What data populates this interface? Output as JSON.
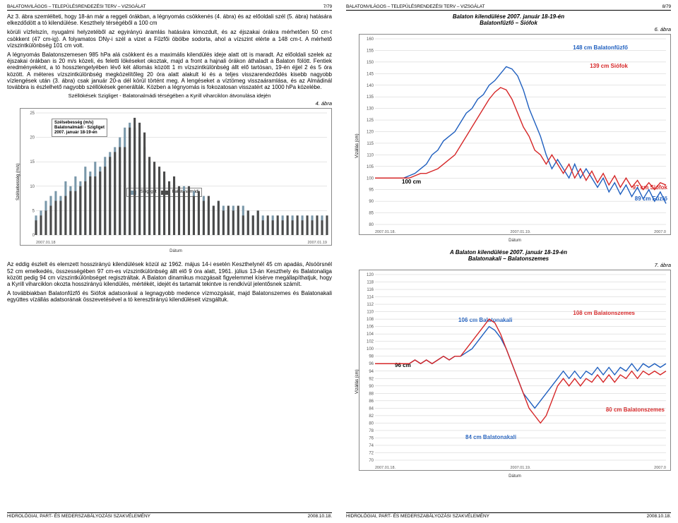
{
  "left": {
    "header_left": "BALATONVILÁGOS – TELEPÜLÉSRENDEZÉSI TERV – VIZSGÁLAT",
    "header_right": "7/79",
    "para1": "Az 3. ábra szemlélteti, hogy 18-án már a reggeli órákban, a légnyomás csökkenés (4. ábra) és az előoldali szél (5. ábra) hatására elkezdődött a tó kilendülése. Keszthely térségéből a 100 cm",
    "para2": "körüli vízfelszín, nyugalmi helyzetéből az egyirányú áramlás hatására kimozdult, és az éjszakai órákra mérhetően 50 cm-t csökkent (47 cm-ig). A folyamatos DNy-i szél a vizet a Fűzfői öbölbe sodorta, ahol a vízszint elérte a 148 cm-t. A mérhető vízszintkülönbség 101 cm volt.",
    "para3": "A légnyomás Balatonszemesen 985 hPa alá csökkent és a maximális kilendülés ideje alatt ott is maradt. Az előoldali szelek az éjszakai órákban is 20 m/s közeli, és feletti lökéseket okoztak, majd a front a hajnali órákon áthaladt a Balaton fölött. Fentiek eredményeként, a tó hossztengelyében lévő két állomás között 1 m vízszintkülönbség állt elő tartósan, 19-én éjjel 2 és 5 óra között. A méteres vízszintkülönbség megközelítőleg 20 óra alatt alakult ki és a teljes visszarendeződés kisebb nagyobb vízlengések után (3. ábra) csak január 20-a dél körül történt meg. A lengéseket a víztömeg visszaáramlása, és az Almádinál továbbra is észlelhető nagyobb széllökések generálták. Közben a légnyomás is fokozatosan visszatért az 1000 hPa közelébe.",
    "chart4": {
      "title": "Széllökések Szigliget - Balatonalmádi térségében a Kyrill viharciklon átvonulása idején",
      "fig": "4. ábra",
      "inset_line1": "Szélsebesség (m/s)",
      "inset_line2": "Balatonalmádi - Szigliget",
      "inset_line3": "2007. január 18-19-én",
      "y_title": "Szélsebesség (m/s)",
      "y_ticks": [
        0,
        5,
        10,
        15,
        20,
        25
      ],
      "ymin": 0,
      "ymax": 25,
      "legend1": "Szigliget",
      "legend2": "Balatonalmádi",
      "x_ticks": [
        "2007.01.18",
        "2007.01.19"
      ],
      "datum": "Dátum",
      "series_a_color": "#7a98aa",
      "series_b_color": "#4a4a4a",
      "bg": "#ffffff",
      "grid_color": "#cccccc",
      "series_a": [
        4,
        5,
        7,
        8,
        9,
        8,
        11,
        10,
        12,
        11,
        14,
        13,
        15,
        14,
        16,
        17,
        18,
        20,
        22,
        23,
        22,
        20,
        18,
        15,
        14,
        13,
        12,
        10,
        11,
        9,
        10,
        8,
        9,
        7,
        8,
        7,
        6,
        7,
        6,
        5,
        6,
        5,
        6,
        5,
        4,
        5,
        4,
        3,
        4,
        3,
        4,
        3,
        4,
        3,
        4,
        3,
        4,
        3,
        4,
        3
      ],
      "series_b": [
        3,
        4,
        5,
        6,
        7,
        7,
        8,
        9,
        9,
        10,
        11,
        12,
        12,
        13,
        14,
        16,
        17,
        18,
        18,
        22,
        24,
        23,
        21,
        16,
        15,
        14,
        13,
        11,
        12,
        10,
        9,
        10,
        8,
        9,
        7,
        8,
        6,
        7,
        5,
        6,
        5,
        6,
        4,
        5,
        4,
        5,
        3,
        4,
        3,
        4,
        3,
        4,
        3,
        4,
        3,
        4,
        3,
        4,
        3,
        4
      ]
    },
    "para4": "Az eddig észlelt és elemzett hosszirányú kilendülések közül az 1962. május 14-i esetén Keszthelynél 45 cm apadás, Alsóörsnél 52 cm emelkedés, összességében 97 cm-es vízszintkülönbség állt elő 9 óra alatt, 1961. július 13-án Keszthely és Balatonaliga között pedig 94 cm vízszintkülönbséget regisztráltak. A Balaton dinamikus mozgásait figyelemmel kísérve megállapíthatjuk, hogy a Kyrill viharciklon okozta hosszirányú kilendülés, mértékét, idejét és tartamát tekintve is rendkívül jelentősnek számít.",
    "para5": "A továbbiakban Balatonfűzfő és Siófok adatsorával a legnagyobb medence vízmozgását, majd Balatonszemes és Balatonakali együttes vízállás adatsorának összevetésével a tó keresztirányú kilendüléseit vizsgáltuk.",
    "footer_left": "HIDROLÓGIAI, PART- ÉS MEDERSZABÁLYOZÁSI SZAKVÉLEMÉNY",
    "footer_right": "2008.10.18."
  },
  "right": {
    "header_left": "BALATONVILÁGOS – TELEPÜLÉSRENDEZÉSI TERV – VIZSGÁLAT",
    "header_right": "8/79",
    "chart6": {
      "title_l1": "Balaton kilendülése 2007. január 18-19-én",
      "title_l2": "Balatonfűzfő – Siófok",
      "fig": "6. ábra",
      "y_title": "Vízállás (cm)",
      "ymin": 80,
      "ymax": 160,
      "y_ticks": [
        80,
        85,
        90,
        95,
        100,
        105,
        110,
        115,
        120,
        125,
        130,
        135,
        140,
        145,
        150,
        155,
        160
      ],
      "x_ticks": [
        "2007.01.18.",
        "2007.01.19.",
        "2007.0"
      ],
      "datum": "Dátum",
      "bg": "#ffffff",
      "grid_color": "#cccccc",
      "a_color": "#1f5fbf",
      "b_color": "#d62728",
      "ann_a_peak": "148 cm  Balatonfűzfő",
      "ann_b_peak": "139 cm   Siófok",
      "ann_100": "100 cm",
      "ann_b_end": "97 cm Siófok",
      "ann_a_end": "89 cm  Fűzfő",
      "series_a": [
        100,
        100,
        100,
        100,
        100,
        100,
        101,
        102,
        104,
        106,
        110,
        112,
        116,
        118,
        120,
        124,
        128,
        130,
        134,
        136,
        140,
        142,
        145,
        148,
        147,
        144,
        138,
        130,
        124,
        118,
        110,
        104,
        108,
        104,
        100,
        106,
        100,
        104,
        100,
        96,
        100,
        94,
        98,
        93,
        97,
        92,
        96,
        91,
        95,
        90,
        94,
        89
      ],
      "series_b": [
        100,
        100,
        100,
        100,
        100,
        100,
        100,
        101,
        102,
        102,
        103,
        104,
        106,
        108,
        110,
        114,
        118,
        122,
        126,
        130,
        134,
        137,
        139,
        138,
        134,
        128,
        122,
        118,
        112,
        110,
        106,
        110,
        106,
        102,
        106,
        100,
        104,
        99,
        103,
        98,
        102,
        97,
        101,
        96,
        100,
        96,
        99,
        95,
        98,
        95,
        98,
        97
      ]
    },
    "chart7": {
      "title_l1": "A Balaton kilendülése 2007. január 18-19-én",
      "title_l2": "Balatonakali – Balatonszemes",
      "fig": "7. ábra",
      "y_title": "Vízállás (cm)",
      "ymin": 70,
      "ymax": 120,
      "y_ticks": [
        70,
        72,
        74,
        76,
        78,
        80,
        82,
        84,
        86,
        88,
        90,
        92,
        94,
        96,
        98,
        100,
        102,
        104,
        106,
        108,
        110,
        112,
        114,
        116,
        118,
        120
      ],
      "x_ticks": [
        "2007.01.18.",
        "2007.01.19.",
        "2007.0"
      ],
      "datum": "Dátum",
      "bg": "#ffffff",
      "grid_color": "#cccccc",
      "a_color": "#1f5fbf",
      "b_color": "#d62728",
      "ann_a_peak": "106 cm Balatonakali",
      "ann_b_peak": "108 cm Balatonszemes",
      "ann_96": "96 cm",
      "ann_a_min": "84 cm Balatonakali",
      "ann_b_min": "80 cm Balatonszemes",
      "series_a": [
        96,
        96,
        96,
        96,
        96,
        96,
        96,
        97,
        96,
        97,
        96,
        97,
        98,
        97,
        98,
        98,
        99,
        100,
        102,
        104,
        106,
        105,
        103,
        100,
        96,
        92,
        88,
        86,
        84,
        86,
        88,
        90,
        92,
        94,
        92,
        94,
        92,
        94,
        93,
        95,
        93,
        95,
        93,
        95,
        94,
        96,
        94,
        96,
        95,
        96,
        95,
        96
      ],
      "series_b": [
        96,
        96,
        96,
        96,
        96,
        96,
        96,
        97,
        96,
        97,
        96,
        97,
        98,
        97,
        98,
        98,
        100,
        102,
        104,
        106,
        108,
        107,
        104,
        100,
        96,
        92,
        88,
        84,
        82,
        80,
        82,
        86,
        90,
        92,
        90,
        92,
        90,
        92,
        91,
        93,
        91,
        93,
        91,
        93,
        92,
        94,
        92,
        94,
        93,
        94,
        93,
        94
      ]
    },
    "footer_left": "HIDROLÓGIAI, PART- ÉS MEDERSZABÁLYOZÁSI SZAKVÉLEMÉNY",
    "footer_right": "2008.10.18."
  }
}
